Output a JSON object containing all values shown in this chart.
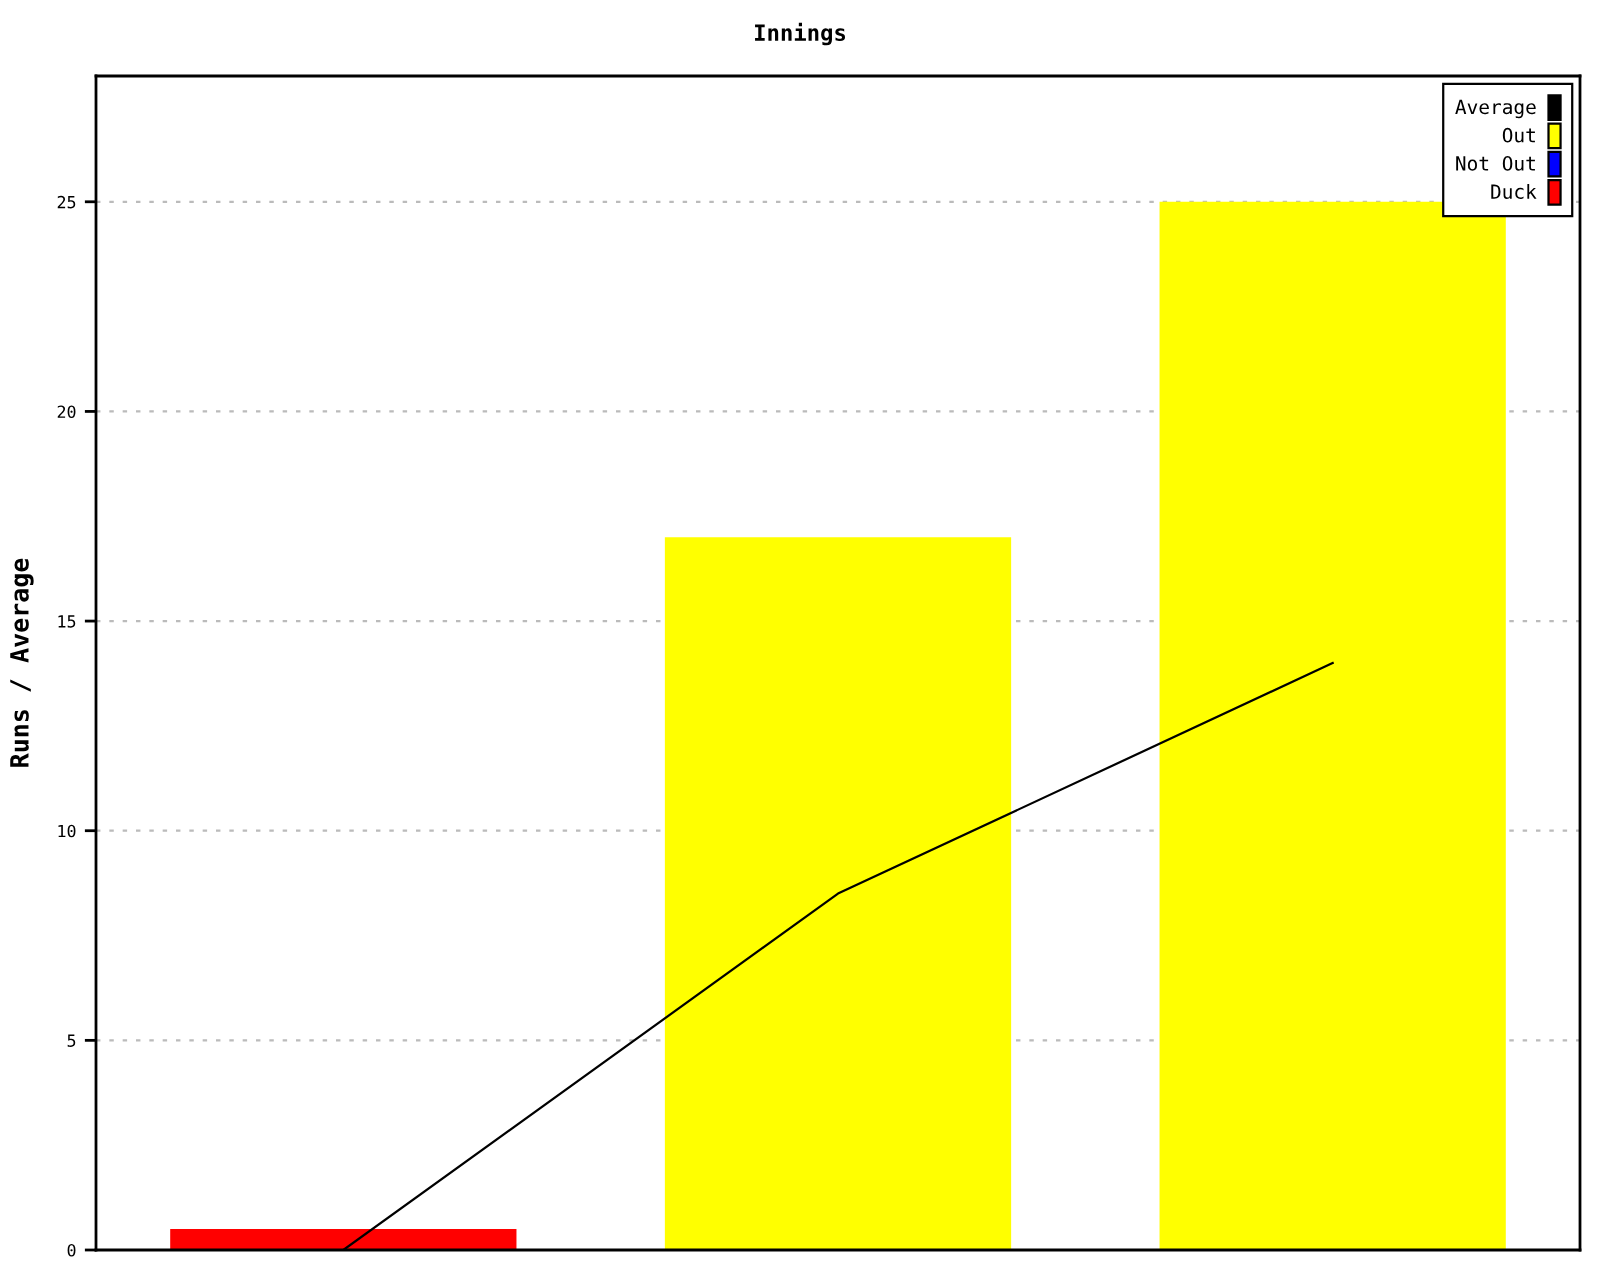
{
  "chart_data": {
    "type": "bar",
    "title": "Innings",
    "ylabel": "Runs / Average",
    "categories": [
      null,
      null,
      null
    ],
    "ylim": [
      0,
      28
    ],
    "yticks": [
      0,
      5,
      10,
      15,
      20,
      25
    ],
    "grid": "y",
    "legend": "top right",
    "tick_labels": "y",
    "series": [
      {
        "name": "Average",
        "type": "line",
        "color": "#000000",
        "values": [
          0,
          8.5,
          14
        ]
      },
      {
        "name": "Out",
        "color": "#ffff00",
        "values": [
          null,
          17,
          25
        ]
      },
      {
        "name": "Not Out",
        "color": "#0000ff",
        "values": [
          null,
          null,
          null
        ]
      },
      {
        "name": "Duck",
        "color": "#ff0000",
        "values": [
          0.5,
          null,
          null
        ]
      }
    ]
  }
}
